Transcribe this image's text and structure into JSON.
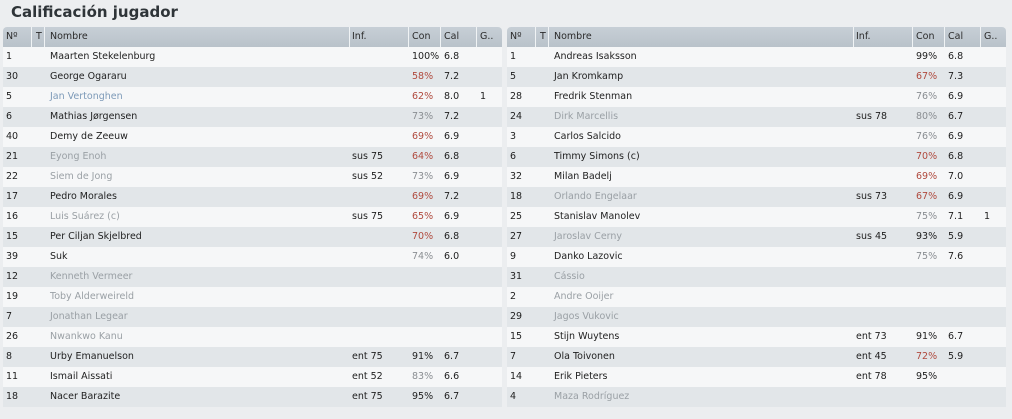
{
  "title": "Calificación jugador",
  "headers": {
    "num": "Nº",
    "t": "T",
    "name": "Nombre",
    "inf": "Inf.",
    "con": "Con",
    "cal": "Cal",
    "g": "G.."
  },
  "left_rows": [
    {
      "num": "1",
      "name": "Maarten Stekelenburg",
      "inf": "",
      "con": "100%",
      "cal": "6.8",
      "g": "",
      "icon": "",
      "style": "normal",
      "con_tone": "full"
    },
    {
      "num": "30",
      "name": "George Ogararu",
      "inf": "",
      "con": "58%",
      "cal": "7.2",
      "g": "",
      "icon": "yellow-card",
      "style": "normal",
      "con_tone": "low"
    },
    {
      "num": "5",
      "name": "Jan Vertonghen",
      "inf": "",
      "con": "62%",
      "cal": "8.0",
      "g": "1",
      "icon": "star",
      "style": "link",
      "con_tone": "low"
    },
    {
      "num": "6",
      "name": "Mathias Jørgensen",
      "inf": "",
      "con": "73%",
      "cal": "7.2",
      "g": "",
      "icon": "",
      "style": "normal",
      "con_tone": "mid"
    },
    {
      "num": "40",
      "name": "Demy de Zeeuw",
      "inf": "",
      "con": "69%",
      "cal": "6.9",
      "g": "",
      "icon": "",
      "style": "normal",
      "con_tone": "low"
    },
    {
      "num": "21",
      "name": "Eyong Enoh",
      "inf": "sus 75",
      "con": "64%",
      "cal": "6.8",
      "g": "",
      "icon": "",
      "style": "dim",
      "con_tone": "low"
    },
    {
      "num": "22",
      "name": "Siem de Jong",
      "inf": "sus 52",
      "con": "73%",
      "cal": "6.9",
      "g": "",
      "icon": "",
      "style": "dim",
      "con_tone": "mid"
    },
    {
      "num": "17",
      "name": "Pedro Morales",
      "inf": "",
      "con": "69%",
      "cal": "7.2",
      "g": "",
      "icon": "",
      "style": "normal",
      "con_tone": "low"
    },
    {
      "num": "16",
      "name": "Luis Suárez (c)",
      "inf": "sus 75",
      "con": "65%",
      "cal": "6.9",
      "g": "",
      "icon": "",
      "style": "dim",
      "con_tone": "low"
    },
    {
      "num": "15",
      "name": "Per Ciljan Skjelbred",
      "inf": "",
      "con": "70%",
      "cal": "6.8",
      "g": "",
      "icon": "yellow-card",
      "style": "normal",
      "con_tone": "low"
    },
    {
      "num": "39",
      "name": "Suk",
      "inf": "",
      "con": "74%",
      "cal": "6.0",
      "g": "",
      "icon": "",
      "style": "normal",
      "con_tone": "mid"
    },
    {
      "num": "12",
      "name": "Kenneth Vermeer",
      "inf": "",
      "con": "",
      "cal": "",
      "g": "",
      "icon": "",
      "style": "dim",
      "con_tone": "full"
    },
    {
      "num": "19",
      "name": "Toby Alderweireld",
      "inf": "",
      "con": "",
      "cal": "",
      "g": "",
      "icon": "",
      "style": "dim",
      "con_tone": "full"
    },
    {
      "num": "7",
      "name": "Jonathan Legear",
      "inf": "",
      "con": "",
      "cal": "",
      "g": "",
      "icon": "",
      "style": "dim",
      "con_tone": "full"
    },
    {
      "num": "26",
      "name": "Nwankwo Kanu",
      "inf": "",
      "con": "",
      "cal": "",
      "g": "",
      "icon": "",
      "style": "dim",
      "con_tone": "full"
    },
    {
      "num": "8",
      "name": "Urby Emanuelson",
      "inf": "ent 75",
      "con": "91%",
      "cal": "6.7",
      "g": "",
      "icon": "",
      "style": "normal",
      "con_tone": "full"
    },
    {
      "num": "11",
      "name": "Ismail Aissati",
      "inf": "ent 52",
      "con": "83%",
      "cal": "6.6",
      "g": "",
      "icon": "",
      "style": "normal",
      "con_tone": "mid"
    },
    {
      "num": "18",
      "name": "Nacer Barazite",
      "inf": "ent 75",
      "con": "95%",
      "cal": "6.7",
      "g": "",
      "icon": "",
      "style": "normal",
      "con_tone": "full"
    }
  ],
  "right_rows": [
    {
      "num": "1",
      "name": "Andreas Isaksson",
      "inf": "",
      "con": "99%",
      "cal": "6.8",
      "g": "",
      "icon": "",
      "style": "normal",
      "con_tone": "full"
    },
    {
      "num": "5",
      "name": "Jan Kromkamp",
      "inf": "",
      "con": "67%",
      "cal": "7.3",
      "g": "",
      "icon": "yellow-card",
      "style": "normal",
      "con_tone": "low"
    },
    {
      "num": "28",
      "name": "Fredrik Stenman",
      "inf": "",
      "con": "76%",
      "cal": "6.9",
      "g": "",
      "icon": "",
      "style": "normal",
      "con_tone": "mid"
    },
    {
      "num": "24",
      "name": "Dirk Marcellis",
      "inf": "sus 78",
      "con": "80%",
      "cal": "6.7",
      "g": "",
      "icon": "",
      "style": "dim",
      "con_tone": "mid"
    },
    {
      "num": "3",
      "name": "Carlos Salcido",
      "inf": "",
      "con": "76%",
      "cal": "6.9",
      "g": "",
      "icon": "",
      "style": "normal",
      "con_tone": "mid"
    },
    {
      "num": "6",
      "name": "Timmy Simons (c)",
      "inf": "",
      "con": "70%",
      "cal": "6.8",
      "g": "",
      "icon": "",
      "style": "normal",
      "con_tone": "low"
    },
    {
      "num": "32",
      "name": "Milan Badelj",
      "inf": "",
      "con": "69%",
      "cal": "7.0",
      "g": "",
      "icon": "",
      "style": "normal",
      "con_tone": "low"
    },
    {
      "num": "18",
      "name": "Orlando Engelaar",
      "inf": "sus 73",
      "con": "67%",
      "cal": "6.9",
      "g": "",
      "icon": "yellow-card",
      "style": "dim",
      "con_tone": "low"
    },
    {
      "num": "25",
      "name": "Stanislav Manolev",
      "inf": "",
      "con": "75%",
      "cal": "7.1",
      "g": "1",
      "icon": "yellow-card",
      "style": "normal",
      "con_tone": "mid"
    },
    {
      "num": "27",
      "name": "Jaroslav Cerny",
      "inf": "sus 45",
      "con": "93%",
      "cal": "5.9",
      "g": "",
      "icon": "",
      "style": "dim",
      "con_tone": "full"
    },
    {
      "num": "9",
      "name": "Danko Lazovic",
      "inf": "",
      "con": "75%",
      "cal": "7.6",
      "g": "",
      "icon": "",
      "style": "normal",
      "con_tone": "mid"
    },
    {
      "num": "31",
      "name": "Cássio",
      "inf": "",
      "con": "",
      "cal": "",
      "g": "",
      "icon": "",
      "style": "dim",
      "con_tone": "full"
    },
    {
      "num": "2",
      "name": "Andre Ooijer",
      "inf": "",
      "con": "",
      "cal": "",
      "g": "",
      "icon": "",
      "style": "dim",
      "con_tone": "full"
    },
    {
      "num": "29",
      "name": "Jagos Vukovic",
      "inf": "",
      "con": "",
      "cal": "",
      "g": "",
      "icon": "",
      "style": "dim",
      "con_tone": "full"
    },
    {
      "num": "15",
      "name": "Stijn Wuytens",
      "inf": "ent 73",
      "con": "91%",
      "cal": "6.7",
      "g": "",
      "icon": "",
      "style": "normal",
      "con_tone": "full"
    },
    {
      "num": "7",
      "name": "Ola Toivonen",
      "inf": "ent 45",
      "con": "72%",
      "cal": "5.9",
      "g": "",
      "icon": "",
      "style": "normal",
      "con_tone": "low"
    },
    {
      "num": "14",
      "name": "Erik Pieters",
      "inf": "ent 78",
      "con": "95%",
      "cal": "",
      "g": "",
      "icon": "",
      "style": "normal",
      "con_tone": "full"
    },
    {
      "num": "4",
      "name": "Maza Rodríguez",
      "inf": "",
      "con": "",
      "cal": "",
      "g": "",
      "icon": "",
      "style": "dim",
      "con_tone": "full"
    }
  ]
}
